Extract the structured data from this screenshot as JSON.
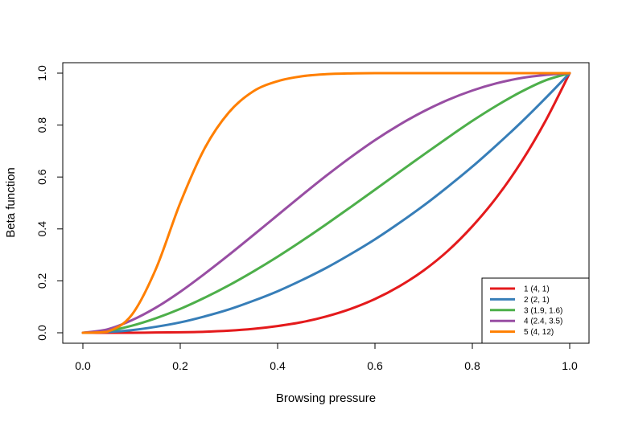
{
  "chart_data": {
    "type": "line",
    "xlabel": "Browsing pressure",
    "ylabel": "Beta function",
    "xlim": [
      0.0,
      1.0
    ],
    "ylim": [
      0.0,
      1.0
    ],
    "x_ticks": [
      "0.0",
      "0.2",
      "0.4",
      "0.6",
      "0.8",
      "1.0"
    ],
    "y_ticks": [
      "0.0",
      "0.2",
      "0.4",
      "0.6",
      "0.8",
      "1.0"
    ],
    "grid": false,
    "legend_position": "bottom-right",
    "x": [
      0.0,
      0.05,
      0.1,
      0.15,
      0.2,
      0.25,
      0.3,
      0.35,
      0.4,
      0.45,
      0.5,
      0.55,
      0.6,
      0.65,
      0.7,
      0.75,
      0.8,
      0.85,
      0.9,
      0.95,
      1.0
    ],
    "series": [
      {
        "name": "1 (4, 1)",
        "color": "#e41a1c",
        "values": [
          0,
          0,
          0,
          0.001,
          0.002,
          0.004,
          0.008,
          0.015,
          0.026,
          0.041,
          0.063,
          0.092,
          0.13,
          0.179,
          0.24,
          0.316,
          0.41,
          0.522,
          0.656,
          0.815,
          1.0
        ]
      },
      {
        "name": "2 (2, 1)",
        "color": "#377eb8",
        "values": [
          0,
          0.003,
          0.01,
          0.023,
          0.04,
          0.063,
          0.09,
          0.123,
          0.16,
          0.203,
          0.25,
          0.303,
          0.36,
          0.423,
          0.49,
          0.563,
          0.64,
          0.723,
          0.81,
          0.903,
          1.0
        ]
      },
      {
        "name": "3 (1.9, 1.6)",
        "color": "#4daf4a",
        "values": [
          0,
          0.007,
          0.027,
          0.056,
          0.092,
          0.135,
          0.183,
          0.236,
          0.293,
          0.354,
          0.418,
          0.484,
          0.551,
          0.619,
          0.686,
          0.752,
          0.816,
          0.875,
          0.928,
          0.972,
          1.0
        ]
      },
      {
        "name": "4 (2.4, 3.5)",
        "color": "#984ea3",
        "values": [
          0,
          0.013,
          0.048,
          0.097,
          0.158,
          0.227,
          0.3,
          0.376,
          0.453,
          0.53,
          0.605,
          0.676,
          0.742,
          0.801,
          0.853,
          0.897,
          0.933,
          0.961,
          0.981,
          0.993,
          1.0
        ]
      },
      {
        "name": "5 (4, 12)",
        "color": "#ff7f00",
        "values": [
          0,
          0.004,
          0.068,
          0.246,
          0.5,
          0.71,
          0.849,
          0.93,
          0.969,
          0.988,
          0.996,
          0.999,
          1.0,
          1.0,
          1.0,
          1.0,
          1.0,
          1.0,
          1.0,
          1.0,
          1.0
        ]
      }
    ]
  }
}
